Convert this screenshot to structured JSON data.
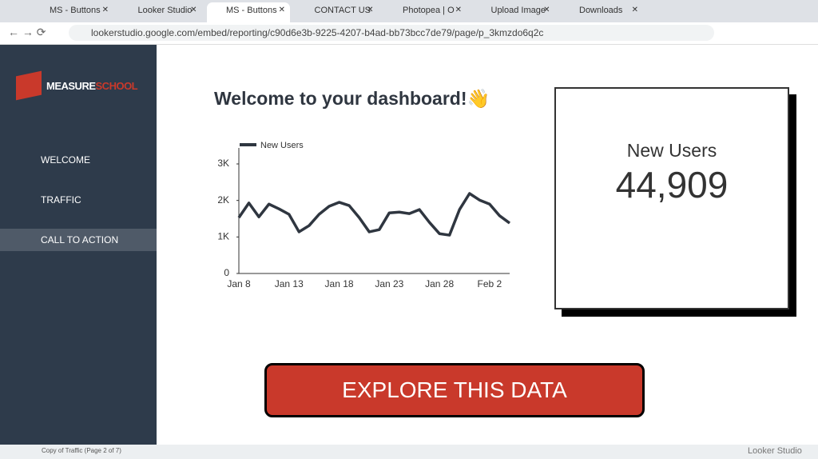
{
  "browser": {
    "tabs": [
      "MS - Buttons",
      "Looker Studio",
      "MS - Buttons",
      "CONTACT US",
      "Photopea | O",
      "Upload Image",
      "Downloads"
    ],
    "active_tab": 2,
    "url": "lookerstudio.google.com/embed/reporting/c90d6e3b-9225-4207-b4ad-bb73bcc7de79/page/p_3kmzdo6q2c"
  },
  "sidebar": {
    "logo": [
      "MEASURE",
      "SCHOOL"
    ],
    "nav": [
      "WELCOME",
      "TRAFFIC",
      "CALL TO ACTION"
    ],
    "active_nav": 2,
    "footer": "Copy of Traffic (Page 2 of 7)"
  },
  "dashboard": {
    "heading": "Welcome to your dashboard!👋",
    "chart": {
      "type": "line",
      "categories": [
        "Jan 8",
        null,
        null,
        null,
        null,
        "Jan 13",
        null,
        null,
        null,
        null,
        "Jan 18",
        null,
        null,
        null,
        null,
        "Jan 23",
        null,
        null,
        null,
        null,
        "Jan 28",
        null,
        null,
        null,
        null,
        "Feb 2",
        null,
        null
      ],
      "series": [
        {
          "name": "New Users",
          "color": "#2f3640",
          "values": [
            1530,
            1930,
            1550,
            1900,
            1770,
            1620,
            1140,
            1310,
            1620,
            1840,
            1950,
            1860,
            1530,
            1140,
            1200,
            1660,
            1680,
            1640,
            1750,
            1400,
            1090,
            1050,
            1750,
            2190,
            2010,
            1900,
            1580,
            1380
          ]
        }
      ],
      "ylim": [
        0,
        3000
      ],
      "yticks": [
        0,
        {
          "value": 1000,
          "label": "1K"
        },
        {
          "value": 2000,
          "label": "2K"
        },
        {
          "value": 3000,
          "label": "3K"
        }
      ]
    },
    "scorecard": {
      "label": "New Users",
      "value": "44,909"
    },
    "button": "EXPLORE THIS DATA",
    "brand": "Looker Studio"
  }
}
